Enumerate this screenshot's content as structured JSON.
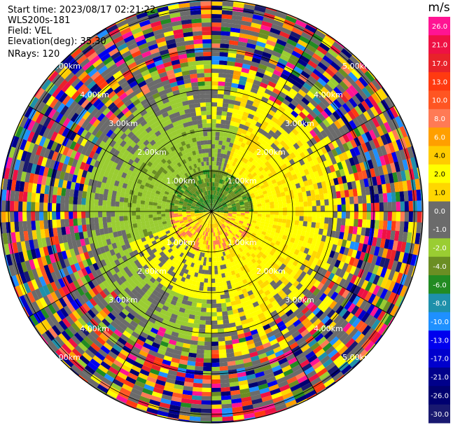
{
  "header": {
    "start_time": "Start time: 2023/08/17 02:21:22",
    "device": "WLS200s-181",
    "field": "Field: VEL",
    "elevation": "Elevation(deg): 35.30",
    "nrays": "NRays: 120"
  },
  "colorbar": {
    "unit": "m/s",
    "bins": [
      {
        "label": "26.0",
        "color": "#ff1493"
      },
      {
        "label": "21.0",
        "color": "#ee1144"
      },
      {
        "label": "17.0",
        "color": "#e8222a"
      },
      {
        "label": "13.0",
        "color": "#ff3a10"
      },
      {
        "label": "10.0",
        "color": "#ff5522"
      },
      {
        "label": "8.0",
        "color": "#ff7a55"
      },
      {
        "label": "6.0",
        "color": "#ff9f00"
      },
      {
        "label": "4.0",
        "color": "#ffcc00"
      },
      {
        "label": "2.0",
        "color": "#ffff00"
      },
      {
        "label": "1.0",
        "color": "#ffd700"
      },
      {
        "label": "0.0",
        "color": "#6b6b6b"
      },
      {
        "label": "-1.0",
        "color": "#6b6b6b"
      },
      {
        "label": "-2.0",
        "color": "#9acd32"
      },
      {
        "label": "-4.0",
        "color": "#6b8e23"
      },
      {
        "label": "-6.0",
        "color": "#228b22"
      },
      {
        "label": "-8.0",
        "color": "#1e90aa"
      },
      {
        "label": "-10.0",
        "color": "#1e90ff"
      },
      {
        "label": "-13.0",
        "color": "#0000ee"
      },
      {
        "label": "-17.0",
        "color": "#0000cd"
      },
      {
        "label": "-21.0",
        "color": "#00008b"
      },
      {
        "label": "-26.0",
        "color": "#000070"
      },
      {
        "label": "-30.0",
        "color": "#191970"
      }
    ]
  },
  "range_labels": [
    "1.00km",
    "2.00km",
    "3.00km",
    "4.00km",
    "5.00km"
  ]
}
